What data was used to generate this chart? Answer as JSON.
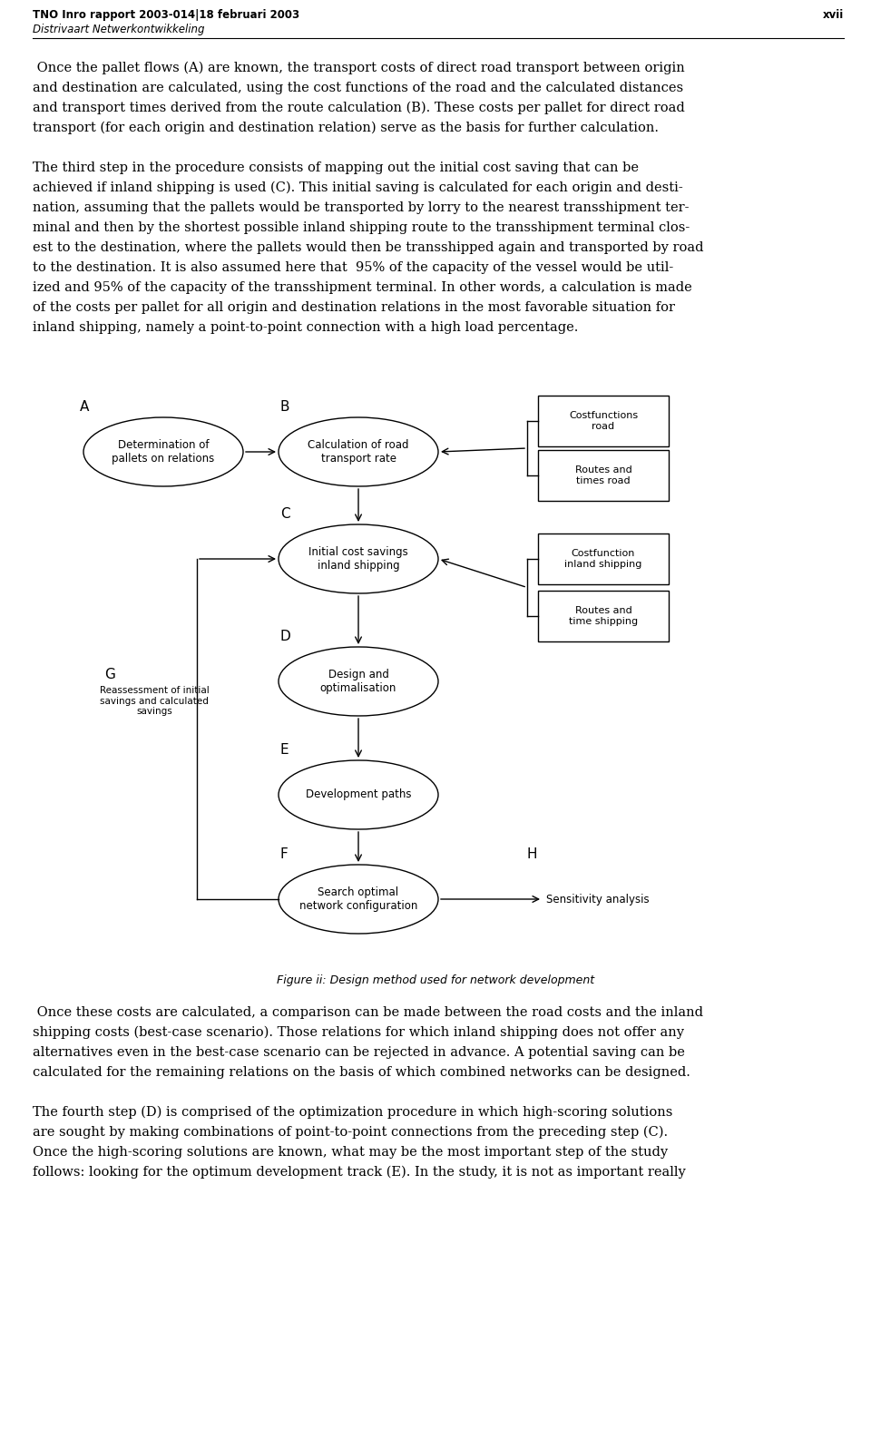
{
  "header_left": "TNO Inro rapport 2003-014|18 februari 2003",
  "header_right": "xvii",
  "header_italic": "Distrivaart Netwerkontwikkeling",
  "bg_color": "#ffffff",
  "text_color": "#000000",
  "paragraph1_lines": [
    " Once the pallet flows (A) are known, the transport costs of direct road transport between origin",
    "and destination are calculated, using the cost functions of the road and the calculated distances",
    "and transport times derived from the route calculation (B). These costs per pallet for direct road",
    "transport (for each origin and destination relation) serve as the basis for further calculation."
  ],
  "paragraph2_lines": [
    "The third step in the procedure consists of mapping out the initial cost saving that can be",
    "achieved if inland shipping is used (C). This initial saving is calculated for each origin and desti-",
    "nation, assuming that the pallets would be transported by lorry to the nearest transshipment ter-",
    "minal and then by the shortest possible inland shipping route to the transshipment terminal clos-",
    "est to the destination, where the pallets would then be transshipped again and transported by road",
    "to the destination. It is also assumed here that  95% of the capacity of the vessel would be util-",
    "ized and 95% of the capacity of the transshipment terminal. In other words, a calculation is made",
    "of the costs per pallet for all origin and destination relations in the most favorable situation for",
    "inland shipping, namely a point-to-point connection with a high load percentage."
  ],
  "figure_caption": "Figure ii: Design method used for network development",
  "post_paragraph1_lines": [
    " Once these costs are calculated, a comparison can be made between the road costs and the inland",
    "shipping costs (best-case scenario). Those relations for which inland shipping does not offer any",
    "alternatives even in the best-case scenario can be rejected in advance. A potential saving can be",
    "calculated for the remaining relations on the basis of which combined networks can be designed."
  ],
  "post_paragraph2_lines": [
    "The fourth step (D) is comprised of the optimization procedure in which high-scoring solutions",
    "are sought by making combinations of point-to-point connections from the preceding step (C).",
    "Once the high-scoring solutions are known, what may be the most important step of the study",
    "follows: looking for the optimum development track (E). In the study, it is not as important really"
  ]
}
